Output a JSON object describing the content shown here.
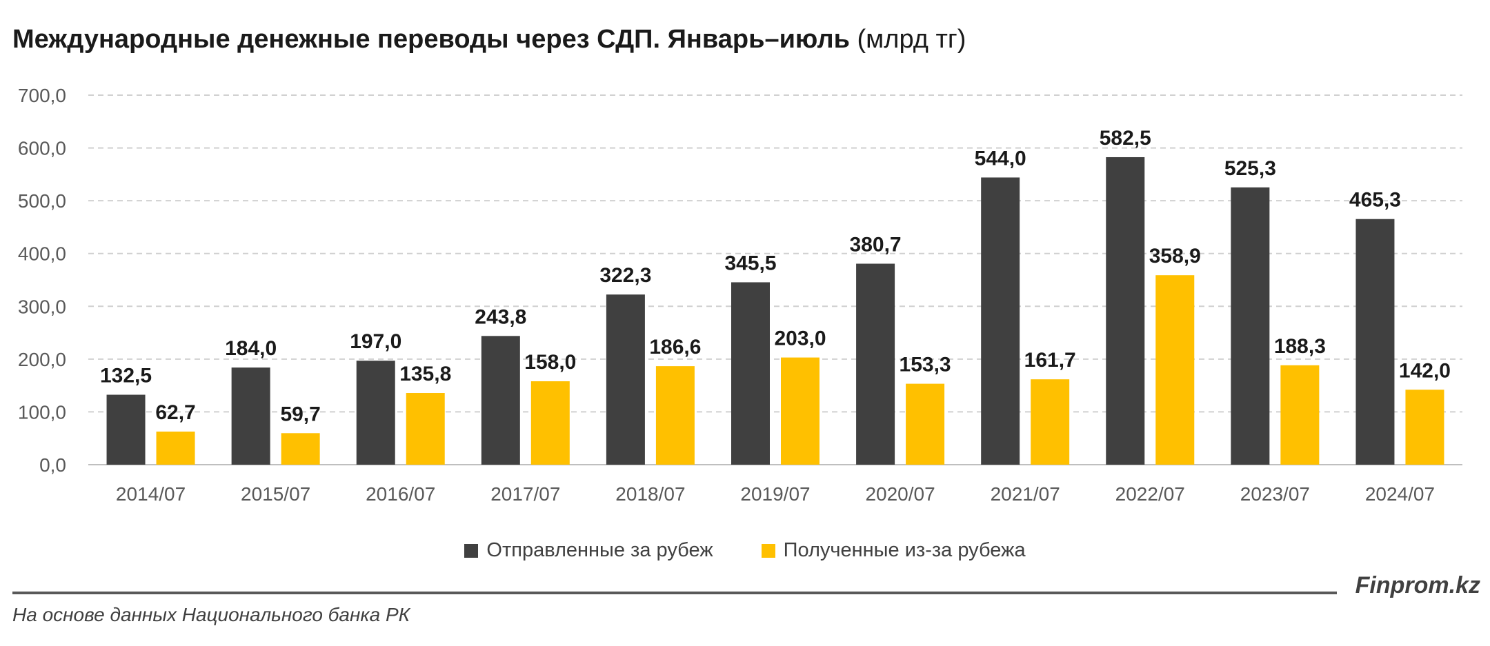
{
  "title": {
    "main": "Международные денежные переводы через СДП. Январь–июль",
    "unit": "(млрд тг)"
  },
  "chart_data": {
    "type": "bar",
    "categories": [
      "2014/07",
      "2015/07",
      "2016/07",
      "2017/07",
      "2018/07",
      "2019/07",
      "2020/07",
      "2021/07",
      "2022/07",
      "2023/07",
      "2024/07"
    ],
    "series": [
      {
        "name": "Отправленные за рубеж",
        "color": "#404040",
        "values": [
          132.5,
          184.0,
          197.0,
          243.8,
          322.3,
          345.5,
          380.7,
          544.0,
          582.5,
          525.3,
          465.3
        ],
        "labels": [
          "132,5",
          "184,0",
          "197,0",
          "243,8",
          "322,3",
          "345,5",
          "380,7",
          "544,0",
          "582,5",
          "525,3",
          "465,3"
        ]
      },
      {
        "name": "Полученные из-за рубежа",
        "color": "#FFC000",
        "values": [
          62.7,
          59.7,
          135.8,
          158.0,
          186.6,
          203.0,
          153.3,
          161.7,
          358.9,
          188.3,
          142.0
        ],
        "labels": [
          "62,7",
          "59,7",
          "135,8",
          "158,0",
          "186,6",
          "203,0",
          "153,3",
          "161,7",
          "358,9",
          "188,3",
          "142,0"
        ]
      }
    ],
    "ylim": [
      0,
      700
    ],
    "yticks": [
      0,
      100,
      200,
      300,
      400,
      500,
      600,
      700
    ],
    "ytick_labels": [
      "0,0",
      "100,0",
      "200,0",
      "300,0",
      "400,0",
      "500,0",
      "600,0",
      "700,0"
    ],
    "grid": true,
    "legend": "bottom"
  },
  "footer": {
    "brand": "Finprom.kz",
    "source": "На основе данных Национального банка РК"
  }
}
